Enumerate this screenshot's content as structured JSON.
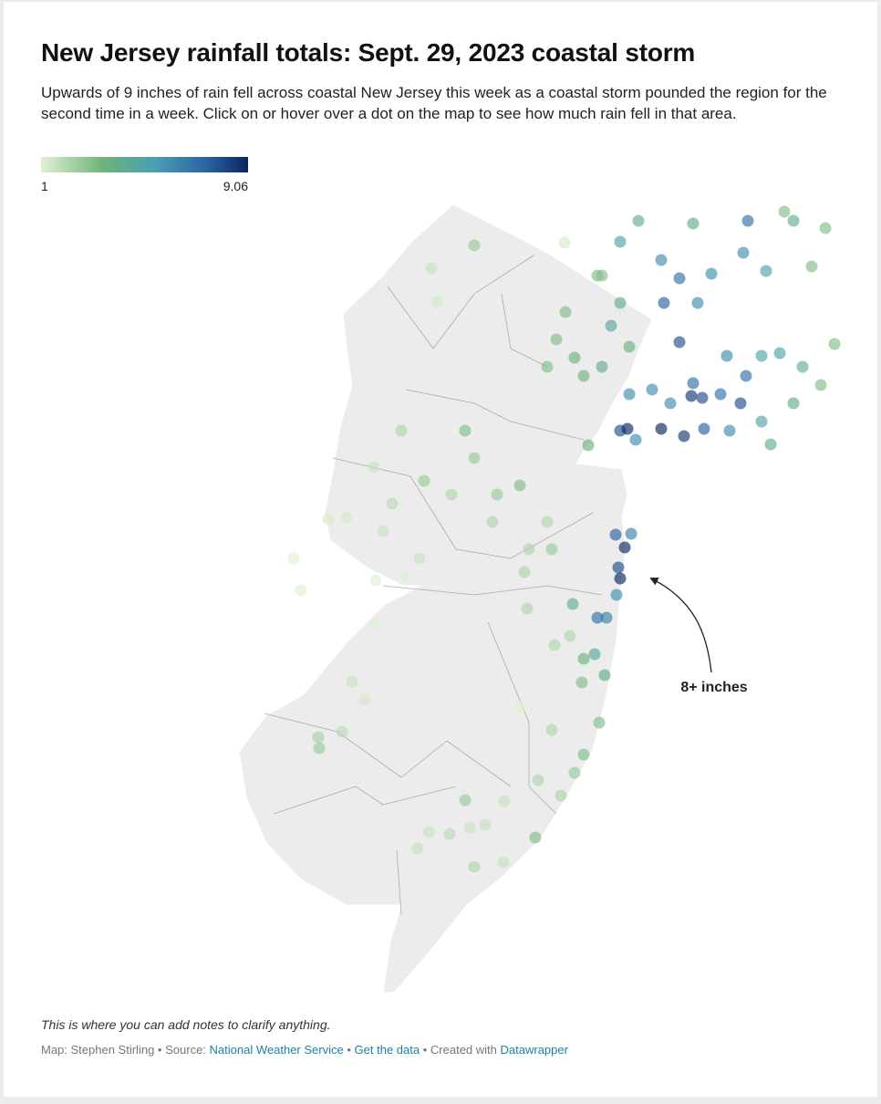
{
  "header": {
    "title": "New Jersey rainfall totals: Sept. 29, 2023 coastal storm",
    "description": "Upwards of 9 inches of rain fell across coastal New Jersey this week as a coastal storm pounded the region for the second time in a week. Click on or hover over a dot on the map to see how much rain fell in that area."
  },
  "map": {
    "legend_min": 1,
    "legend_max": 9.06,
    "annotation": "8+ inches",
    "rainfall": [
      2.5,
      1.5,
      1.3,
      1.2,
      3,
      3,
      3.5,
      3,
      3.5,
      4,
      3.5,
      4.5,
      3,
      4,
      6,
      8,
      9,
      6,
      3.5,
      6,
      6,
      8.5,
      8,
      7,
      7,
      8,
      7,
      6,
      5,
      5,
      4,
      3,
      8,
      7.5,
      7,
      6,
      6,
      6,
      5,
      4,
      3,
      7,
      4,
      4,
      5,
      3,
      9,
      8.5,
      7.5,
      6,
      5,
      4,
      3,
      6,
      3,
      3,
      4,
      2.5,
      2,
      1.8,
      1.5,
      2,
      2.5,
      2.5,
      3,
      2,
      2,
      2,
      3,
      1.5,
      1.5,
      1.2,
      1.2,
      1,
      1,
      1,
      1,
      2,
      2.5,
      7.5,
      6.5,
      9,
      8,
      9,
      6,
      6.5,
      7,
      4,
      3.5,
      4.5,
      4,
      3,
      2,
      2,
      2,
      3,
      3,
      2.5,
      2,
      2,
      2,
      2.2,
      2.5,
      1.8,
      1.5,
      1.3,
      1,
      2.5,
      1.5,
      1.5,
      1.8,
      1.5,
      1.5,
      3,
      2,
      1.5,
      1.5,
      1
    ]
  },
  "footer": {
    "notes": "This is where you can add notes to clarify anything.",
    "author": "Map: Stephen Stirling",
    "separator": "•",
    "source_label": "Source:",
    "source": "National Weather Service",
    "get_data": "Get the data",
    "created_with": "Created with",
    "tool": "Datawrapper"
  }
}
